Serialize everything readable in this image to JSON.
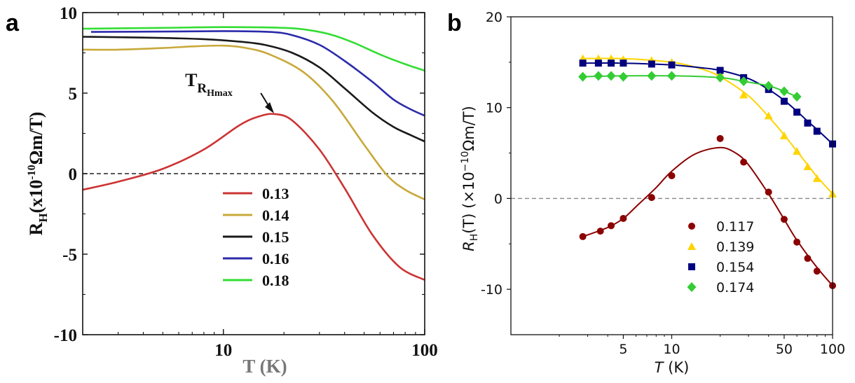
{
  "chart_data": [
    {
      "panel": "a",
      "type": "line",
      "xscale": "log",
      "xlim": [
        2,
        100
      ],
      "ylim": [
        -10,
        10
      ],
      "xlabel": "T (K)",
      "ylabel": "R_H(x10^-10 Ωm/T)",
      "xlabel_parts": {
        "main": "T (K)"
      },
      "ylabel_parts": {
        "main": "R",
        "sub": "H",
        "mid": "(x10",
        "sup": "-10",
        "end": "Ωm/T)"
      },
      "xticks": [
        {
          "v": 10,
          "label": "10"
        },
        {
          "v": 100,
          "label": "100"
        }
      ],
      "yticks": [
        {
          "v": 10,
          "label": "10"
        },
        {
          "v": 5,
          "label": "5"
        },
        {
          "v": 0,
          "label": "0"
        },
        {
          "v": -5,
          "label": "-5"
        },
        {
          "v": -10,
          "label": "-10"
        }
      ],
      "zero_line": true,
      "annotation": {
        "text_main": "T",
        "text_sub1": "R",
        "text_sub2": "Hmax",
        "x": 18,
        "y": 3.7
      },
      "series": [
        {
          "name": "0.13",
          "color": "#cc3333",
          "x": [
            2,
            3,
            5,
            8,
            12,
            15,
            18,
            22,
            30,
            40,
            55,
            75,
            100
          ],
          "y": [
            -1.0,
            -0.5,
            0.3,
            1.5,
            3.0,
            3.55,
            3.7,
            3.3,
            1.5,
            -0.9,
            -3.8,
            -5.8,
            -6.6
          ]
        },
        {
          "name": "0.14",
          "color": "#c8a93a",
          "x": [
            2,
            3,
            5,
            7,
            10,
            13,
            17,
            25,
            35,
            50,
            65,
            80,
            100
          ],
          "y": [
            7.7,
            7.7,
            7.8,
            7.9,
            7.95,
            7.8,
            7.4,
            6.3,
            4.5,
            1.8,
            -0.1,
            -1.0,
            -1.6
          ]
        },
        {
          "name": "0.15",
          "color": "#1a1a1a",
          "x": [
            2,
            4,
            8,
            12,
            16,
            22,
            30,
            40,
            55,
            70,
            85,
            100
          ],
          "y": [
            8.5,
            8.45,
            8.35,
            8.2,
            8.0,
            7.5,
            6.6,
            5.3,
            3.8,
            2.9,
            2.4,
            2.0
          ]
        },
        {
          "name": "0.16",
          "color": "#2b2baa",
          "x": [
            2.2,
            5,
            10,
            17,
            22,
            30,
            40,
            55,
            70,
            85,
            100
          ],
          "y": [
            8.8,
            8.82,
            8.85,
            8.8,
            8.6,
            8.0,
            7.0,
            5.7,
            4.6,
            4.0,
            3.6
          ]
        },
        {
          "name": "0.18",
          "color": "#33dd33",
          "x": [
            2,
            5,
            10,
            20,
            27,
            35,
            45,
            60,
            80,
            100
          ],
          "y": [
            9.0,
            9.05,
            9.1,
            9.05,
            8.9,
            8.6,
            8.1,
            7.4,
            6.8,
            6.4
          ]
        }
      ]
    },
    {
      "panel": "b",
      "type": "scatter",
      "xscale": "log",
      "xlim": [
        1,
        100
      ],
      "ylim": [
        -15,
        20
      ],
      "xlabel": "T (K)",
      "ylabel": "R_H(T) (×10^−10 Ωm/T)",
      "xlabel_parts": {
        "italic": "T",
        "rest": " (K)"
      },
      "ylabel_parts": {
        "italic": "R",
        "sub": "H",
        "mid": "(T) (×10",
        "sup": "−10",
        "end": "Ωm/T)"
      },
      "xticks": [
        {
          "v": 5,
          "label": "5"
        },
        {
          "v": 10,
          "label": "10"
        },
        {
          "v": 50,
          "label": "50"
        },
        {
          "v": 100,
          "label": "100"
        }
      ],
      "yticks": [
        {
          "v": 20,
          "label": "20"
        },
        {
          "v": 10,
          "label": "10"
        },
        {
          "v": 0,
          "label": "0"
        },
        {
          "v": -10,
          "label": "-10"
        }
      ],
      "zero_line": true,
      "series": [
        {
          "name": "0.117",
          "marker": "circle",
          "color": "#8b0000",
          "x": [
            2.8,
            3.6,
            4.2,
            5.0,
            7.5,
            10,
            20,
            28,
            40,
            50,
            60,
            70,
            80,
            100
          ],
          "y": [
            -4.2,
            -3.6,
            -3.0,
            -2.2,
            0.1,
            2.5,
            6.6,
            4.0,
            0.7,
            -2.3,
            -4.8,
            -6.6,
            -8.0,
            -9.6
          ],
          "fit_x": [
            2.8,
            4,
            5,
            6,
            8,
            10,
            14,
            20,
            25,
            30,
            40,
            50,
            60,
            80,
            100
          ],
          "fit_y": [
            -4.2,
            -3.2,
            -2.2,
            -0.9,
            1.2,
            3.0,
            4.9,
            5.6,
            5.0,
            3.7,
            0.5,
            -2.3,
            -4.6,
            -7.6,
            -9.6
          ]
        },
        {
          "name": "0.139",
          "marker": "triangle",
          "color": "#ffd400",
          "x": [
            2.8,
            3.5,
            4.2,
            5.0,
            7.5,
            10,
            20,
            28,
            40,
            50,
            60,
            70,
            80,
            100
          ],
          "y": [
            15.4,
            15.4,
            15.4,
            15.3,
            15.2,
            15.0,
            13.7,
            11.4,
            9.1,
            6.9,
            5.2,
            3.5,
            2.2,
            0.5
          ],
          "fit_x": [
            2.8,
            5,
            10,
            15,
            20,
            30,
            40,
            50,
            60,
            70,
            80,
            100
          ],
          "fit_y": [
            15.4,
            15.4,
            15.0,
            14.3,
            13.4,
            11.3,
            9.0,
            7.0,
            5.2,
            3.7,
            2.4,
            0.5
          ]
        },
        {
          "name": "0.154",
          "marker": "square",
          "color": "#000080",
          "x": [
            2.8,
            3.5,
            4.2,
            5.0,
            7.5,
            10,
            20,
            28,
            40,
            50,
            60,
            70,
            80,
            100
          ],
          "y": [
            14.9,
            14.9,
            14.9,
            14.9,
            14.8,
            14.7,
            14.1,
            13.3,
            12.0,
            10.7,
            9.5,
            8.3,
            7.4,
            6.0
          ],
          "fit_x": [
            2.8,
            5,
            10,
            15,
            20,
            30,
            40,
            50,
            60,
            70,
            80,
            100
          ],
          "fit_y": [
            14.9,
            14.9,
            14.7,
            14.4,
            14.1,
            13.2,
            12.0,
            10.8,
            9.6,
            8.5,
            7.6,
            6.0
          ]
        },
        {
          "name": "0.174",
          "marker": "diamond",
          "color": "#33cc33",
          "x": [
            2.8,
            3.5,
            4.2,
            5.0,
            7.5,
            10,
            20,
            28,
            40,
            50,
            60
          ],
          "y": [
            13.4,
            13.5,
            13.5,
            13.4,
            13.5,
            13.5,
            13.3,
            12.9,
            12.4,
            11.8,
            11.2
          ],
          "fit_x": [
            2.8,
            5,
            10,
            20,
            28,
            40,
            50,
            60
          ],
          "fit_y": [
            13.4,
            13.5,
            13.5,
            13.3,
            12.9,
            12.4,
            11.8,
            11.2
          ]
        }
      ]
    }
  ],
  "labels": {
    "panel_a": "a",
    "panel_b": "b"
  }
}
